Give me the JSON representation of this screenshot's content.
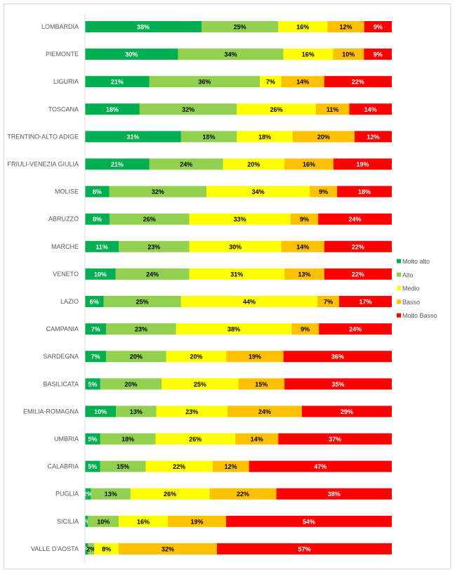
{
  "chart_data": {
    "type": "bar",
    "orientation": "horizontal",
    "stacked": "100%",
    "title": "",
    "xlabel": "",
    "ylabel": "",
    "xlim": [
      0,
      100
    ],
    "grid": false,
    "legend_position": "right",
    "categories": [
      "LOMBARDIA",
      "PIEMONTE",
      "LIGURIA",
      "TOSCANA",
      "TRENTINO-ALTO ADIGE",
      "FRIULI-VENEZIA GIULIA",
      "MOLISE",
      "ABRUZZO",
      "MARCHE",
      "VENETO",
      "LAZIO",
      "CAMPANIA",
      "SARDEGNA",
      "BASILICATA",
      "EMILIA-ROMAGNA",
      "UMBRIA",
      "CALABRIA",
      "PUGLIA",
      "SICILIA",
      "VALLE D'AOSTA"
    ],
    "series": [
      {
        "name": "Molto alto",
        "color": "#00b050",
        "label_color": "#ffffff",
        "values": [
          38,
          30,
          21,
          18,
          31,
          21,
          8,
          8,
          11,
          10,
          6,
          7,
          7,
          5,
          10,
          5,
          5,
          2,
          1,
          1
        ]
      },
      {
        "name": "Alto",
        "color": "#92d050",
        "label_color": "#000000",
        "values": [
          25,
          34,
          36,
          32,
          18,
          24,
          32,
          26,
          23,
          24,
          25,
          23,
          20,
          20,
          13,
          18,
          15,
          13,
          10,
          2
        ]
      },
      {
        "name": "Medio",
        "color": "#ffff00",
        "label_color": "#000000",
        "values": [
          16,
          16,
          7,
          26,
          18,
          20,
          34,
          33,
          30,
          31,
          44,
          38,
          20,
          25,
          23,
          26,
          22,
          26,
          16,
          8
        ]
      },
      {
        "name": "Basso",
        "color": "#ffc000",
        "label_color": "#000000",
        "values": [
          12,
          10,
          14,
          11,
          20,
          16,
          9,
          9,
          14,
          13,
          7,
          9,
          19,
          15,
          24,
          14,
          12,
          22,
          19,
          32
        ]
      },
      {
        "name": "Molto Basso",
        "color": "#ff0000",
        "label_color": "#ffffff",
        "values": [
          9,
          9,
          22,
          14,
          12,
          19,
          18,
          24,
          22,
          22,
          17,
          24,
          36,
          35,
          29,
          37,
          47,
          38,
          54,
          57
        ]
      }
    ],
    "value_format": "{v}%"
  }
}
